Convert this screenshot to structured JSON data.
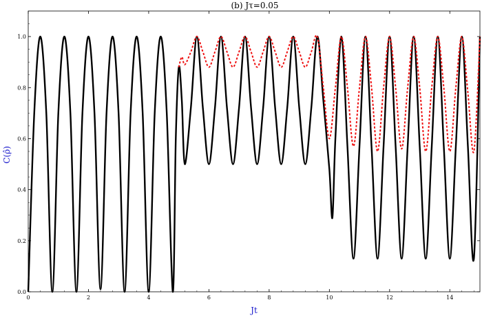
{
  "chart_data": {
    "type": "line",
    "title": "(b) Jτ=0.05",
    "xlabel": "Jt",
    "ylabel": "C(ρ̂)",
    "xlim": [
      0,
      15
    ],
    "ylim": [
      0,
      1.1
    ],
    "x_ticks": [
      0,
      2,
      4,
      6,
      8,
      10,
      12,
      14
    ],
    "y_ticks": [
      0.0,
      0.2,
      0.4,
      0.6,
      0.8,
      1.0
    ],
    "x_tick_labels": [
      "0",
      "2",
      "4",
      "6",
      "8",
      "10",
      "12",
      "14"
    ],
    "y_tick_labels": [
      "0.0",
      "0.2",
      "0.4",
      "0.6",
      "0.8",
      "1.0"
    ],
    "grid": false,
    "legend": "none",
    "axis_label_color": "#1a1acc",
    "series": [
      {
        "style": "solid",
        "color": "#000000",
        "x": [
          0,
          0.2,
          0.4,
          0.6,
          0.8,
          1.0,
          1.2,
          1.4,
          1.6,
          1.8,
          2.0,
          2.2,
          2.4,
          2.6,
          2.8,
          3.0,
          3.2,
          3.4,
          3.6,
          3.8,
          4.0,
          4.2,
          4.4,
          4.6,
          4.8,
          4.9,
          5.0,
          5.1,
          5.2,
          5.4,
          5.6,
          5.8,
          6.0,
          6.2,
          6.4,
          6.6,
          6.8,
          7.0,
          7.2,
          7.4,
          7.6,
          7.8,
          8.0,
          8.2,
          8.4,
          8.6,
          8.8,
          9.0,
          9.2,
          9.4,
          9.6,
          9.8,
          10.0,
          10.1,
          10.2,
          10.4,
          10.6,
          10.8,
          11.0,
          11.2,
          11.4,
          11.6,
          11.8,
          12.0,
          12.2,
          12.4,
          12.6,
          12.8,
          13.0,
          13.2,
          13.4,
          13.6,
          13.8,
          14.0,
          14.2,
          14.4,
          14.6,
          14.8,
          15.0
        ],
        "y": [
          0.0,
          0.7,
          1.0,
          0.7,
          0.0,
          0.7,
          1.0,
          0.7,
          0.0,
          0.7,
          1.0,
          0.7,
          0.01,
          0.7,
          1.0,
          0.7,
          0.0,
          0.7,
          1.0,
          0.7,
          0.0,
          0.7,
          1.0,
          0.7,
          0.0,
          0.6,
          0.88,
          0.75,
          0.5,
          0.72,
          1.0,
          0.72,
          0.5,
          0.72,
          1.0,
          0.72,
          0.5,
          0.72,
          1.0,
          0.72,
          0.5,
          0.72,
          1.0,
          0.72,
          0.5,
          0.72,
          1.0,
          0.72,
          0.5,
          0.72,
          1.0,
          0.75,
          0.48,
          0.29,
          0.6,
          1.0,
          0.57,
          0.13,
          0.57,
          1.0,
          0.57,
          0.13,
          0.57,
          1.0,
          0.57,
          0.13,
          0.57,
          1.0,
          0.57,
          0.13,
          0.57,
          1.0,
          0.57,
          0.13,
          0.57,
          1.0,
          0.57,
          0.13,
          1.0
        ]
      },
      {
        "style": "dashed",
        "color": "#ee1111",
        "x": [
          5.0,
          5.1,
          5.2,
          5.4,
          5.6,
          5.8,
          6.0,
          6.2,
          6.4,
          6.6,
          6.8,
          7.0,
          7.2,
          7.4,
          7.6,
          7.8,
          8.0,
          8.2,
          8.4,
          8.6,
          8.8,
          9.0,
          9.2,
          9.4,
          9.6,
          9.8,
          10.0,
          10.2,
          10.4,
          10.6,
          10.8,
          11.0,
          11.2,
          11.4,
          11.6,
          11.8,
          12.0,
          12.2,
          12.4,
          12.6,
          12.8,
          13.0,
          13.2,
          13.4,
          13.6,
          13.8,
          14.0,
          14.2,
          14.4,
          14.6,
          14.8,
          15.0
        ],
        "y": [
          0.88,
          0.92,
          0.89,
          0.94,
          1.0,
          0.94,
          0.88,
          0.94,
          1.0,
          0.94,
          0.88,
          0.94,
          1.0,
          0.94,
          0.88,
          0.94,
          1.0,
          0.94,
          0.88,
          0.94,
          1.0,
          0.94,
          0.88,
          0.94,
          1.0,
          0.8,
          0.6,
          0.8,
          1.0,
          0.8,
          0.57,
          0.8,
          1.0,
          0.8,
          0.55,
          0.8,
          1.0,
          0.8,
          0.56,
          0.8,
          1.0,
          0.8,
          0.55,
          0.8,
          1.0,
          0.8,
          0.55,
          0.8,
          1.0,
          0.78,
          0.55,
          1.0
        ]
      }
    ]
  }
}
